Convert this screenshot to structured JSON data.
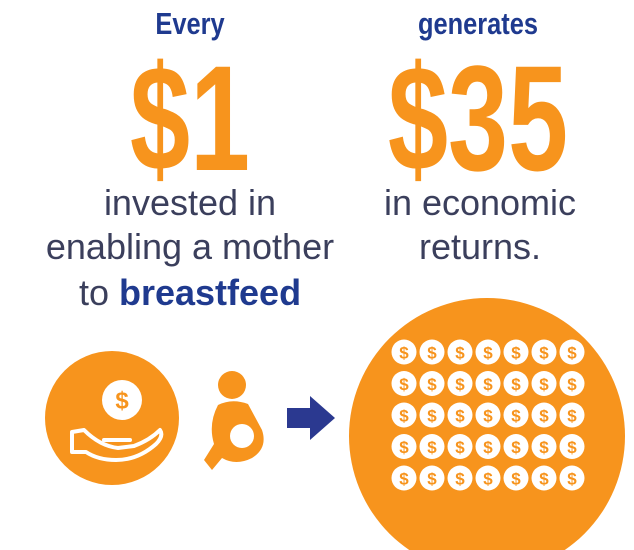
{
  "left": {
    "lead": "Every",
    "amount": "$1",
    "lines": [
      "invested in",
      "enabling a mother"
    ],
    "last_prefix": "to",
    "last_bold": "breastfeed"
  },
  "right": {
    "lead": "generates",
    "amount": "$35",
    "lines": [
      "in economic",
      "returns."
    ]
  },
  "coin_symbol": "$"
}
